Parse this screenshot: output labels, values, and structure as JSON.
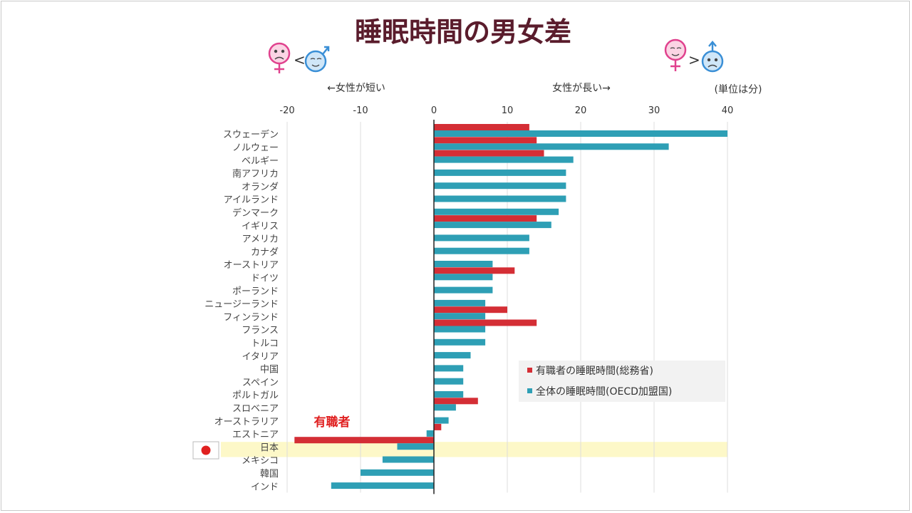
{
  "chart_data": {
    "type": "bar",
    "orientation": "horizontal",
    "title": "睡眠時間の男女差",
    "left_note": "←女性が短い",
    "right_note": "女性が長い→",
    "unit_note": "(単位は分)",
    "annotation": "有職者",
    "compare_left": "<",
    "compare_right": ">",
    "highlight_category": "日本",
    "xlim": [
      -20,
      40
    ],
    "xticks": [
      -20,
      -10,
      0,
      10,
      20,
      30,
      40
    ],
    "categories": [
      "スウェーデン",
      "ノルウェー",
      "ベルギー",
      "南アフリカ",
      "オランダ",
      "アイルランド",
      "デンマーク",
      "イギリス",
      "アメリカ",
      "カナダ",
      "オーストリア",
      "ドイツ",
      "ポーランド",
      "ニュージーランド",
      "フィンランド",
      "フランス",
      "トルコ",
      "イタリア",
      "中国",
      "スペイン",
      "ポルトガル",
      "スロベニア",
      "オーストラリア",
      "エストニア",
      "日本",
      "メキシコ",
      "韓国",
      "インド"
    ],
    "series": [
      {
        "name": "有職者の睡眠時間(総務省)",
        "color": "#d42e35",
        "values": [
          13,
          14,
          15,
          null,
          null,
          null,
          null,
          14,
          null,
          null,
          null,
          11,
          null,
          null,
          10,
          14,
          null,
          null,
          null,
          null,
          null,
          6,
          null,
          1,
          -19,
          null,
          null,
          null
        ]
      },
      {
        "name": "全体の睡眠時間(OECD加盟国)",
        "color": "#2e9fb5",
        "values": [
          40,
          32,
          19,
          18,
          18,
          18,
          17,
          16,
          13,
          13,
          8,
          8,
          8,
          7,
          7,
          7,
          7,
          5,
          4,
          4,
          4,
          3,
          2,
          -1,
          -5,
          -7,
          -10,
          -14
        ]
      }
    ],
    "highlight_color": "#fdf8c8",
    "grid": true,
    "legend_position": "bottom-right"
  }
}
